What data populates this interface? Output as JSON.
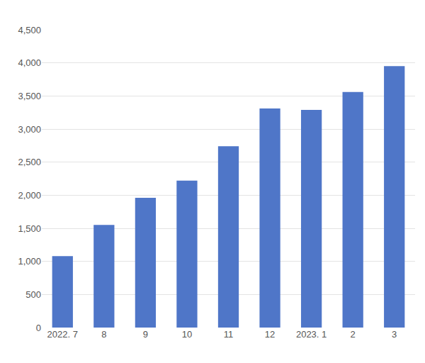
{
  "chart_data": {
    "type": "bar",
    "categories": [
      "2022. 7",
      "8",
      "9",
      "10",
      "11",
      "12",
      "2023. 1",
      "2",
      "3"
    ],
    "values": [
      1080,
      1550,
      1960,
      2220,
      2740,
      3310,
      3290,
      3560,
      3950
    ],
    "color": "#4f76c8",
    "ylim": [
      0,
      4500
    ],
    "yticks": [
      0,
      500,
      {
        "value": 1000,
        "label": "1,000"
      },
      {
        "value": 1500,
        "label": "1,500"
      },
      {
        "value": 2000,
        "label": "2,000"
      },
      {
        "value": 2500,
        "label": "2,500"
      },
      {
        "value": 3000,
        "label": "3,000"
      },
      {
        "value": 3500,
        "label": "3,500"
      },
      {
        "value": 4000,
        "label": "4,000"
      },
      {
        "value": 4500,
        "label": "4,500"
      }
    ],
    "grid": true
  }
}
